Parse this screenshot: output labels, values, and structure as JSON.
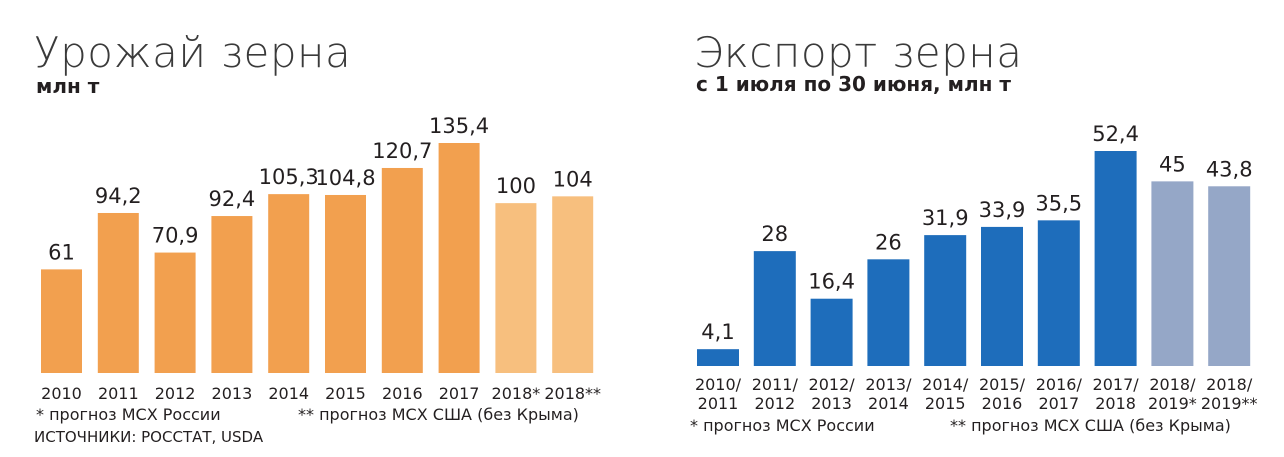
{
  "chart_data": [
    {
      "type": "bar",
      "title": "Урожай зерна",
      "subtitle": "млн т",
      "categories": [
        "2010",
        "2011",
        "2012",
        "2013",
        "2014",
        "2015",
        "2016",
        "2017",
        "2018*",
        "2018**"
      ],
      "values": [
        61,
        94.2,
        70.9,
        92.4,
        105.3,
        104.8,
        120.7,
        135.4,
        100,
        104
      ],
      "value_labels": [
        "61",
        "94,2",
        "70,9",
        "92,4",
        "105,3",
        "104,8",
        "120,7",
        "135,4",
        "100",
        "104"
      ],
      "ylim": [
        0,
        140
      ],
      "grid": false,
      "colors": {
        "actual": "#f2a04f",
        "forecast": "#f7bf7e"
      },
      "forecast_from_index": 8,
      "notes": [
        "* прогноз МСХ России",
        "** прогноз МСХ США (без Крыма)"
      ],
      "source": "ИСТОЧНИКИ: РОССТАТ, USDA"
    },
    {
      "type": "bar",
      "title": "Экспорт зерна",
      "subtitle": "с 1 июля по 30 июня, млн т",
      "categories": [
        [
          "2010/",
          "2011"
        ],
        [
          "2011/",
          "2012"
        ],
        [
          "2012/",
          "2013"
        ],
        [
          "2013/",
          "2014"
        ],
        [
          "2014/",
          "2015"
        ],
        [
          "2015/",
          "2016"
        ],
        [
          "2016/",
          "2017"
        ],
        [
          "2017/",
          "2018"
        ],
        [
          "2018/",
          "2019*"
        ],
        [
          "2018/",
          "2019**"
        ]
      ],
      "values": [
        4.1,
        28,
        16.4,
        26,
        31.9,
        33.9,
        35.5,
        52.4,
        45,
        43.8
      ],
      "value_labels": [
        "4,1",
        "28",
        "16,4",
        "26",
        "31,9",
        "33,9",
        "35,5",
        "52,4",
        "45",
        "43,8"
      ],
      "ylim": [
        0,
        56
      ],
      "grid": false,
      "colors": {
        "actual": "#1e6dbb",
        "forecast": "#95a7c7"
      },
      "forecast_from_index": 8,
      "notes": [
        "* прогноз МСХ России",
        "** прогноз МСХ США (без Крыма)"
      ]
    }
  ]
}
